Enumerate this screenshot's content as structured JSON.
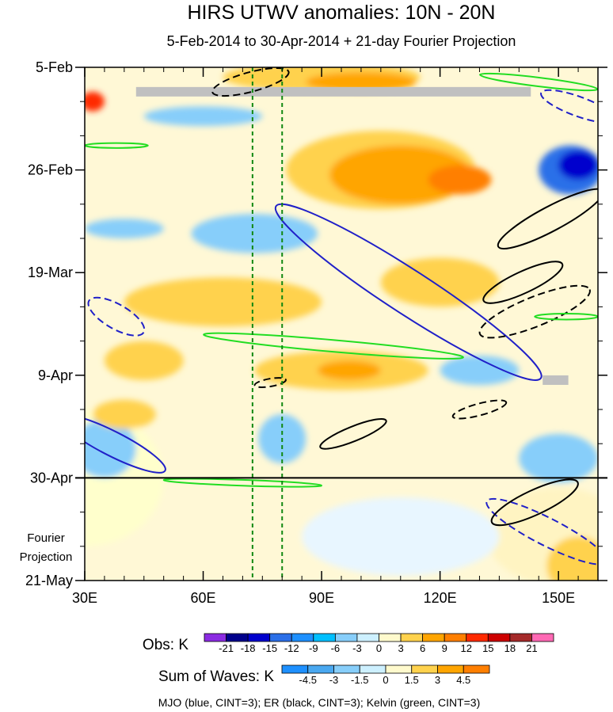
{
  "chart_data": {
    "type": "heatmap",
    "title": "HIRS UTWV anomalies: 10N - 20N",
    "subtitle": "5-Feb-2014 to 30-Apr-2014 + 21-day Fourier Projection",
    "xlim": [
      30,
      160
    ],
    "x_ticks": [
      {
        "value": 30,
        "label": "30E"
      },
      {
        "value": 60,
        "label": "60E"
      },
      {
        "value": 90,
        "label": "90E"
      },
      {
        "value": 120,
        "label": "120E"
      },
      {
        "value": 150,
        "label": "150E"
      }
    ],
    "x_minor_step": 5,
    "ylim_days": [
      0,
      105
    ],
    "y_ticks": [
      {
        "day": 0,
        "label": "5-Feb"
      },
      {
        "day": 21,
        "label": "26-Feb"
      },
      {
        "day": 42,
        "label": "19-Mar"
      },
      {
        "day": 63,
        "label": "9-Apr"
      },
      {
        "day": 84,
        "label": "30-Apr"
      },
      {
        "day": 105,
        "label": "21-May"
      }
    ],
    "y_minor_step_days": 7,
    "projection_label_line1": "Fourier",
    "projection_label_line2": "Projection",
    "projection_start_day": 84,
    "reference_lon": [
      72.5,
      80
    ],
    "obs_colorbar": {
      "title": "Obs: K",
      "levels": [
        "-21",
        "-18",
        "-15",
        "-12",
        "-9",
        "-6",
        "-3",
        "0",
        "3",
        "6",
        "9",
        "12",
        "15",
        "18",
        "21"
      ],
      "colors": [
        "#8b2be2",
        "#00008b",
        "#0000cd",
        "#2b6fe8",
        "#1e90ff",
        "#00bfff",
        "#87cefa",
        "#cdf0ff",
        "#fffacd",
        "#ffd24d",
        "#ffa500",
        "#ff7f00",
        "#ff2a00",
        "#cd0000",
        "#a52a2a",
        "#ff69b4"
      ]
    },
    "waves_colorbar": {
      "title": "Sum of Waves: K",
      "levels": [
        "-4.5",
        "-3",
        "-1.5",
        "0",
        "1.5",
        "3",
        "4.5"
      ],
      "colors": [
        "#1e90ff",
        "#4aa8f0",
        "#87cefa",
        "#cdf0ff",
        "#fffacd",
        "#ffd24d",
        "#ffa500",
        "#ff7f00"
      ]
    },
    "legend_text": "MJO (blue, CINT=3); ER (black, CINT=3); Kelvin (green, CINT=3)",
    "contour_colors": {
      "MJO": "#2020c8",
      "ER": "#000000",
      "Kelvin": "#22dd22"
    },
    "missing_color": "#c0c0c0",
    "missing_segments": [
      {
        "lon": [
          43,
          143
        ],
        "day": 5
      },
      {
        "lon": [
          146,
          152.5
        ],
        "day": 64
      }
    ],
    "field_blobs": [
      {
        "lon": 30,
        "day": 84,
        "rx": 20,
        "ry": 14,
        "color": "#ffffcc"
      },
      {
        "lon": 90,
        "day": 2,
        "rx": 25,
        "ry": 3,
        "color": "#ffd24d"
      },
      {
        "lon": 100,
        "day": 3,
        "rx": 14,
        "ry": 2,
        "color": "#ffa500"
      },
      {
        "lon": 105,
        "day": 21,
        "rx": 24,
        "ry": 8,
        "color": "#ffd24d"
      },
      {
        "lon": 110,
        "day": 22,
        "rx": 18,
        "ry": 6,
        "color": "#ffa500"
      },
      {
        "lon": 125,
        "day": 23,
        "rx": 8,
        "ry": 3,
        "color": "#ff7f00"
      },
      {
        "lon": 32,
        "day": 7,
        "rx": 3,
        "ry": 2,
        "color": "#ff2a00"
      },
      {
        "lon": 153,
        "day": 21,
        "rx": 8,
        "ry": 5,
        "color": "#2b6fe8"
      },
      {
        "lon": 155,
        "day": 20,
        "rx": 5,
        "ry": 3,
        "color": "#0000cd"
      },
      {
        "lon": 73,
        "day": 34,
        "rx": 16,
        "ry": 4,
        "color": "#87cefa"
      },
      {
        "lon": 40,
        "day": 33,
        "rx": 10,
        "ry": 2,
        "color": "#87cefa"
      },
      {
        "lon": 65,
        "day": 48,
        "rx": 25,
        "ry": 5,
        "color": "#ffd24d"
      },
      {
        "lon": 95,
        "day": 62,
        "rx": 22,
        "ry": 4,
        "color": "#ffd24d"
      },
      {
        "lon": 97,
        "day": 62,
        "rx": 8,
        "ry": 2,
        "color": "#ffa500"
      },
      {
        "lon": 35,
        "day": 78,
        "rx": 8,
        "ry": 6,
        "color": "#87cefa"
      },
      {
        "lon": 130,
        "day": 62,
        "rx": 10,
        "ry": 3,
        "color": "#87cefa"
      },
      {
        "lon": 150,
        "day": 80,
        "rx": 10,
        "ry": 5,
        "color": "#87cefa"
      },
      {
        "lon": 150,
        "day": 96,
        "rx": 18,
        "ry": 10,
        "color": "#fff4c2"
      },
      {
        "lon": 110,
        "day": 96,
        "rx": 25,
        "ry": 8,
        "color": "#e8f6ff"
      },
      {
        "lon": 155,
        "day": 102,
        "rx": 8,
        "ry": 6,
        "color": "#ffd24d"
      },
      {
        "lon": 40,
        "day": 71,
        "rx": 8,
        "ry": 3,
        "color": "#ffd24d"
      },
      {
        "lon": 120,
        "day": 44,
        "rx": 15,
        "ry": 5,
        "color": "#ffd24d"
      },
      {
        "lon": 60,
        "day": 10,
        "rx": 15,
        "ry": 2,
        "color": "#87cefa"
      },
      {
        "lon": 45,
        "day": 60,
        "rx": 10,
        "ry": 4,
        "color": "#ffd24d"
      },
      {
        "lon": 80,
        "day": 76,
        "rx": 6,
        "ry": 5,
        "color": "#87cefa"
      }
    ],
    "contours": [
      {
        "wave": "MJO",
        "dashed": false,
        "lon": 112,
        "day": 46,
        "rx": 40,
        "ry": 4.5,
        "angle": 33
      },
      {
        "wave": "MJO",
        "dashed": false,
        "lon": 37,
        "day": 77,
        "rx": 15,
        "ry": 2.5,
        "angle": 27
      },
      {
        "wave": "MJO",
        "dashed": true,
        "lon": 38,
        "day": 51,
        "rx": 8,
        "ry": 2.5,
        "angle": 30
      },
      {
        "wave": "MJO",
        "dashed": true,
        "lon": 147,
        "day": 95,
        "rx": 17,
        "ry": 2.8,
        "angle": 27
      },
      {
        "wave": "MJO",
        "dashed": true,
        "lon": 155,
        "day": 8,
        "rx": 10,
        "ry": 2,
        "angle": 20
      },
      {
        "wave": "ER",
        "dashed": false,
        "lon": 148,
        "day": 31,
        "rx": 15,
        "ry": 2.5,
        "angle": -28
      },
      {
        "wave": "ER",
        "dashed": false,
        "lon": 141,
        "day": 44,
        "rx": 11,
        "ry": 2.2,
        "angle": -25
      },
      {
        "wave": "ER",
        "dashed": false,
        "lon": 144,
        "day": 89,
        "rx": 12,
        "ry": 2.5,
        "angle": -25
      },
      {
        "wave": "ER",
        "dashed": false,
        "lon": 98,
        "day": 75,
        "rx": 9,
        "ry": 1.5,
        "angle": -22
      },
      {
        "wave": "ER",
        "dashed": true,
        "lon": 72,
        "day": 3,
        "rx": 10,
        "ry": 2,
        "angle": -15
      },
      {
        "wave": "ER",
        "dashed": true,
        "lon": 144,
        "day": 50,
        "rx": 15,
        "ry": 3,
        "angle": -22
      },
      {
        "wave": "ER",
        "dashed": true,
        "lon": 130,
        "day": 70,
        "rx": 7,
        "ry": 1.2,
        "angle": -15
      },
      {
        "wave": "ER",
        "dashed": true,
        "lon": 77,
        "day": 64.5,
        "rx": 4,
        "ry": 0.8,
        "angle": -10
      },
      {
        "wave": "Kelvin",
        "dashed": false,
        "lon": 93,
        "day": 57,
        "rx": 33,
        "ry": 1.2,
        "angle": 5
      },
      {
        "wave": "Kelvin",
        "dashed": false,
        "lon": 145,
        "day": 3,
        "rx": 15,
        "ry": 0.9,
        "angle": 7
      },
      {
        "wave": "Kelvin",
        "dashed": false,
        "lon": 38,
        "day": 16,
        "rx": 8,
        "ry": 0.5,
        "angle": 0
      },
      {
        "wave": "Kelvin",
        "dashed": false,
        "lon": 70,
        "day": 85,
        "rx": 20,
        "ry": 0.6,
        "angle": 2
      },
      {
        "wave": "Kelvin",
        "dashed": false,
        "lon": 152,
        "day": 51,
        "rx": 8,
        "ry": 0.6,
        "angle": 0
      }
    ]
  }
}
